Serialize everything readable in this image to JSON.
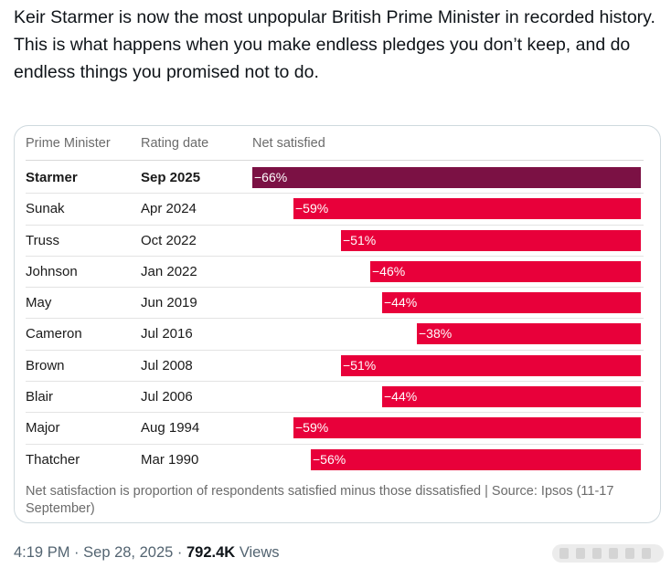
{
  "tweet": {
    "line1": "Keir Starmer is now the most unpopular British Prime Minister in recorded history.",
    "line2": "This is what happens when you make endless pledges you don’t keep, and do endless things you promised not to do."
  },
  "chart_data": {
    "type": "table",
    "columns": [
      "Prime Minister",
      "Rating date",
      "Net satisfied"
    ],
    "rows": [
      {
        "pm": "Starmer",
        "date": "Sep 2025",
        "value": -66,
        "label": "−66%",
        "highlight": true
      },
      {
        "pm": "Sunak",
        "date": "Apr 2024",
        "value": -59,
        "label": "−59%",
        "highlight": false
      },
      {
        "pm": "Truss",
        "date": "Oct 2022",
        "value": -51,
        "label": "−51%",
        "highlight": false
      },
      {
        "pm": "Johnson",
        "date": "Jan 2022",
        "value": -46,
        "label": "−46%",
        "highlight": false
      },
      {
        "pm": "May",
        "date": "Jun 2019",
        "value": -44,
        "label": "−44%",
        "highlight": false
      },
      {
        "pm": "Cameron",
        "date": "Jul 2016",
        "value": -38,
        "label": "−38%",
        "highlight": false
      },
      {
        "pm": "Brown",
        "date": "Jul 2008",
        "value": -51,
        "label": "−51%",
        "highlight": false
      },
      {
        "pm": "Blair",
        "date": "Jul 2006",
        "value": -44,
        "label": "−44%",
        "highlight": false
      },
      {
        "pm": "Major",
        "date": "Aug 1994",
        "value": -59,
        "label": "−59%",
        "highlight": false
      },
      {
        "pm": "Thatcher",
        "date": "Mar 1990",
        "value": -56,
        "label": "−56%",
        "highlight": false
      }
    ],
    "axis_range": [
      -66,
      0
    ],
    "note": "Net satisfaction is proportion of respondents satisfied minus those dissatisfied | Source: Ipsos (11-17 September)",
    "colors": {
      "highlight": "#7b1144",
      "default": "#e8003a"
    }
  },
  "meta": {
    "time": "4:19 PM",
    "sep": "·",
    "date": "Sep 28, 2025",
    "views_count": "792.4K",
    "views_label": "Views"
  }
}
